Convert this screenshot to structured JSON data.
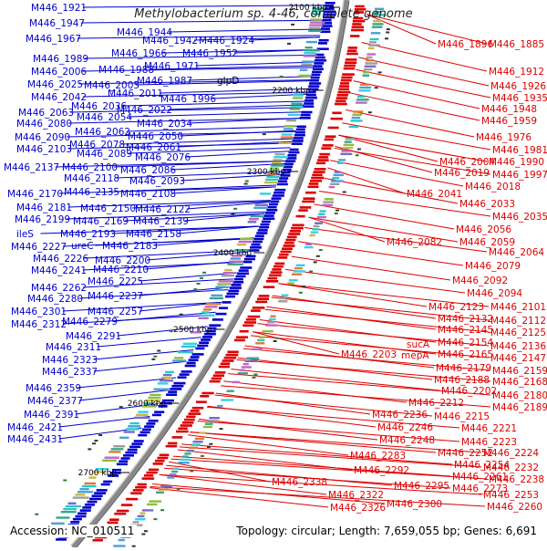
{
  "title": "Methylobacterium sp. 4-46, complete genome",
  "footer": {
    "accession": "Accession: NC_010511",
    "summary": "Topology: circular; Length: 7,659,055 bp; Genes: 6,691"
  },
  "colors": {
    "forward": "#0000cc",
    "reverse": "#dd0000",
    "backbone": "#888888",
    "tick_label": "#000000",
    "feature_palette": [
      "#4b9fd8",
      "#2bc7c7",
      "#8bbf3a",
      "#c9b840",
      "#7a68c8",
      "#e07a2d",
      "#3aa68a",
      "#c266c6",
      "#9c9c9c",
      "#35d0e8"
    ]
  },
  "ticks": [
    "2100 kbp",
    "2200 kbp",
    "2300 kbp",
    "2400 kbp",
    "2500 kbp",
    "2600 kbp",
    "2700 kbp"
  ],
  "left_labels": [
    "M446_1921",
    "M446_1947",
    "M446_1944",
    "M446_1967",
    "M446_1942",
    "M446_1924",
    "M446_1966",
    "M446_1952",
    "M446_1989",
    "M446_1971",
    "M446_2006",
    "M446_1988",
    "M446_2025",
    "M446_2005",
    "M446_1987",
    "M446_2011",
    "M446_2042",
    "M446_1996",
    "M446_2036",
    "M446_2022",
    "M446_2063",
    "M446_2054",
    "M446_2080",
    "M446_2034",
    "M446_2062",
    "M446_2090",
    "M446_2050",
    "M446_2078",
    "M446_2061",
    "M446_2103",
    "M446_2089",
    "M446_2076",
    "M446_2137",
    "M446_2100",
    "M446_2086",
    "M446_2118",
    "M446_2093",
    "M446_2135",
    "M446_2108",
    "M446_2170",
    "M446_2181",
    "M446_2150",
    "M446_2122",
    "M446_2139",
    "M446_2199",
    "M446_2169",
    "ileS",
    "M446_2193",
    "M446_2158",
    "M446_2227",
    "ureC",
    "M446_2183",
    "M446_2226",
    "M446_2200",
    "M446_2241",
    "M446_2210",
    "M446_2225",
    "M446_2262",
    "M446_2237",
    "M446_2280",
    "M446_2301",
    "M446_2257",
    "M446_2312",
    "M446_2279",
    "M446_2291",
    "M446_2311",
    "M446_2323",
    "M446_2337",
    "M446_2359",
    "M446_2377",
    "M446_2391",
    "M446_2421",
    "M446_2431"
  ],
  "gene_names": [
    "glpD",
    "sucA",
    "mepA"
  ],
  "right_labels": [
    "M446_1896",
    "M446_1885",
    "M446_1912",
    "M446_1926",
    "M446_1935",
    "M446_1948",
    "M446_1959",
    "M446_1976",
    "M446_1981",
    "M446_2004",
    "M446_1990",
    "M446_2019",
    "M446_1997",
    "M446_2018",
    "M446_2041",
    "M446_2033",
    "M446_2035",
    "M446_2056",
    "M446_2082",
    "M446_2059",
    "M446_2064",
    "M446_2079",
    "M446_2092",
    "M446_2094",
    "M446_2123",
    "M446_2101",
    "M446_2132",
    "M446_2112",
    "M446_2145",
    "M446_2125",
    "M446_2154",
    "M446_2136",
    "M446_2203",
    "M446_2165",
    "M446_2147",
    "M446_2179",
    "M446_2159",
    "M446_2188",
    "M446_2168",
    "M446_2202",
    "M446_2180",
    "M446_2212",
    "M446_2189",
    "M446_2236",
    "M446_2215",
    "M446_2246",
    "M446_2221",
    "M446_2248",
    "M446_2223",
    "M446_2283",
    "M446_2252",
    "M446_2224",
    "M446_2254",
    "M446_2232",
    "M446_2292",
    "M446_2261",
    "M446_2238",
    "M446_2295",
    "M446_2273",
    "M446_2338",
    "M446_2322",
    "M446_2253",
    "M446_2326",
    "M446_2300",
    "M446_2260"
  ]
}
